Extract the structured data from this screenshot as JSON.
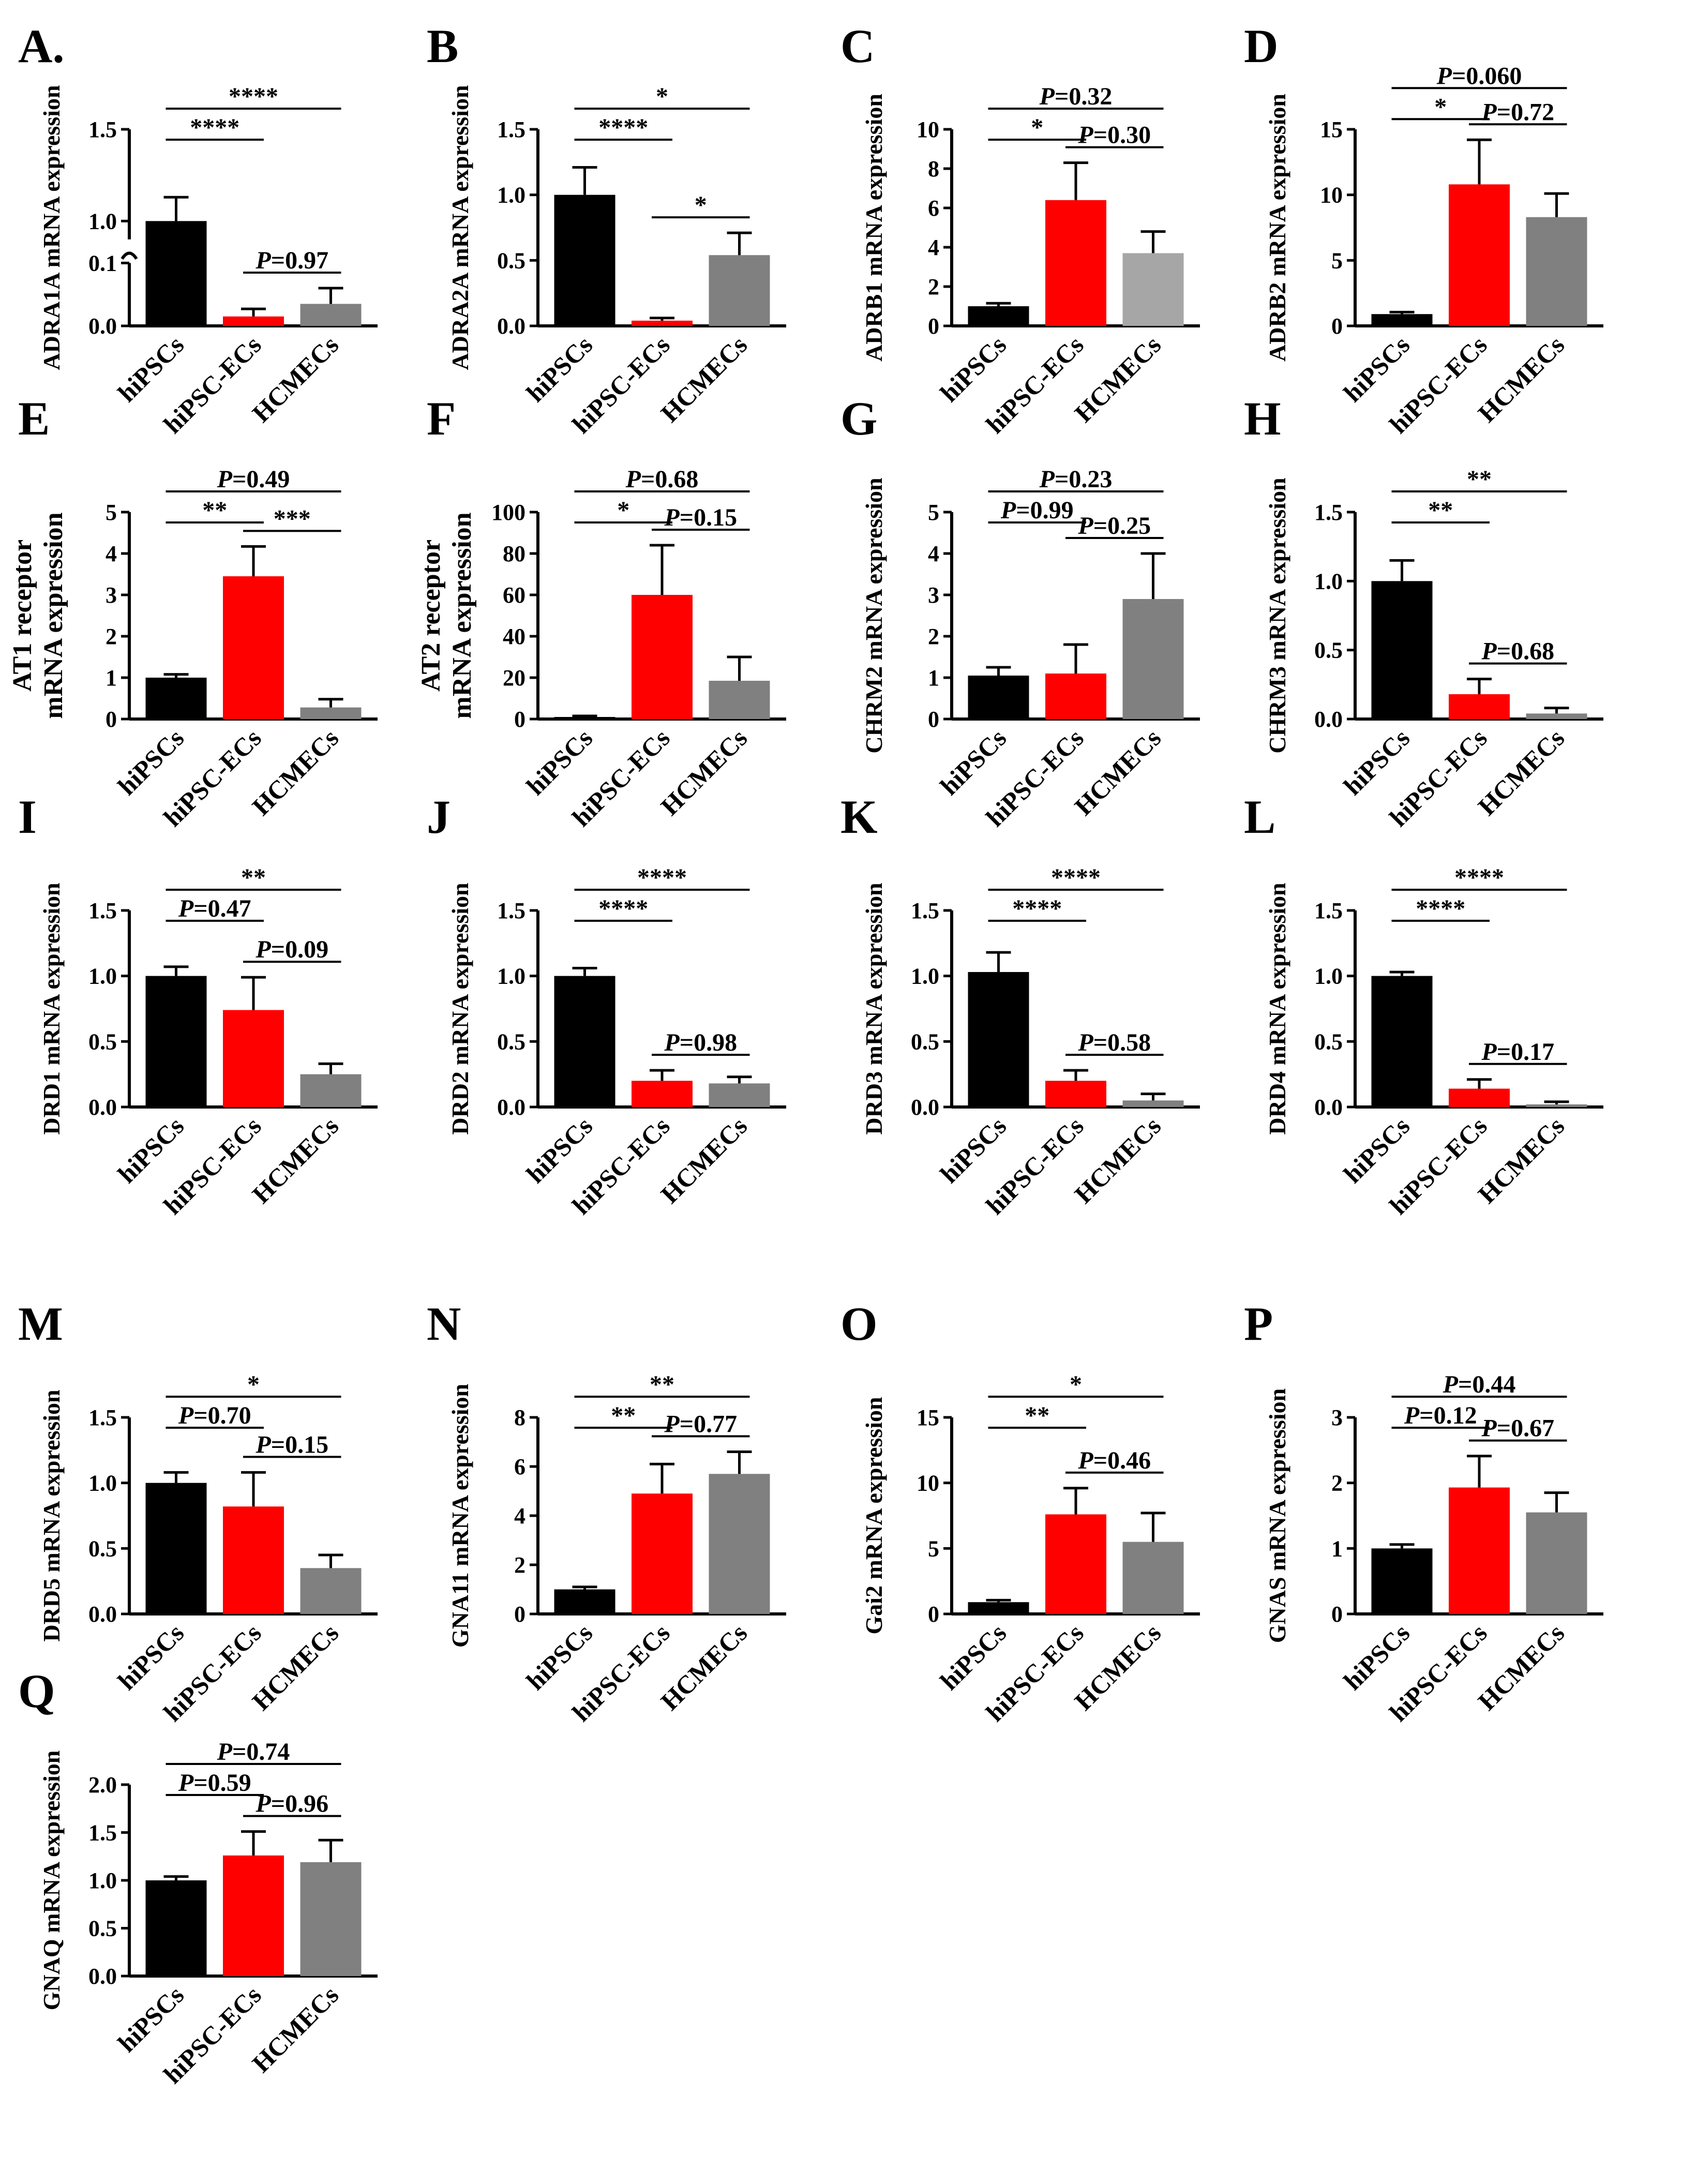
{
  "colors": {
    "hiPSCs": "#000000",
    "hiPSC-ECs": "#ff0000",
    "HCMECs": "#808080",
    "HCMECs_light": "#a6a6a6"
  },
  "chart_data": [
    {
      "id": "A",
      "type": "bar",
      "ylabel": "ADRA1A mRNA expression",
      "categories": [
        "hiPSCs",
        "hiPSC-ECs",
        "HCMECs"
      ],
      "values": [
        1.0,
        0.015,
        0.035
      ],
      "errors": [
        0.13,
        0.012,
        0.025
      ],
      "broken_axis": true,
      "ylim_low": [
        0,
        0.1
      ],
      "ylim_high": [
        0.9,
        1.5
      ],
      "ticks_low": [
        0.0,
        0.1
      ],
      "ticks_high": [
        1.0,
        1.5
      ],
      "tick_labels": {
        "0": "0.0",
        "0.1": "0.1",
        "1": "1.0",
        "1.5": "1.5"
      },
      "annotations": [
        {
          "label": "****",
          "from": 0,
          "to": 1
        },
        {
          "label": "****",
          "from": 0,
          "to": 2
        },
        {
          "label": "P=0.97",
          "from": 1,
          "to": 2
        }
      ]
    },
    {
      "id": "B",
      "type": "bar",
      "ylabel": "ADRA2A mRNA expression",
      "categories": [
        "hiPSCs",
        "hiPSC-ECs",
        "HCMECs"
      ],
      "values": [
        1.0,
        0.04,
        0.54
      ],
      "errors": [
        0.21,
        0.02,
        0.17
      ],
      "ylim": [
        0,
        1.5
      ],
      "ticks": [
        0,
        0.5,
        1.0,
        1.5
      ],
      "tick_labels": [
        "0.0",
        "0.5",
        "1.0",
        "1.5"
      ],
      "annotations": [
        {
          "label": "****",
          "from": 0,
          "to": 1
        },
        {
          "label": "*",
          "from": 0,
          "to": 2
        },
        {
          "label": "*",
          "from": 1,
          "to": 2
        }
      ]
    },
    {
      "id": "C",
      "type": "bar",
      "ylabel": "ADRB1 mRNA expression",
      "categories": [
        "hiPSCs",
        "hiPSC-ECs",
        "HCMECs"
      ],
      "values": [
        1.0,
        6.4,
        3.7
      ],
      "errors": [
        0.15,
        1.9,
        1.1
      ],
      "ylim": [
        0,
        10
      ],
      "ticks": [
        0,
        2,
        4,
        6,
        8,
        10
      ],
      "tick_labels": [
        "0",
        "2",
        "4",
        "6",
        "8",
        "10"
      ],
      "annotations": [
        {
          "label": "*",
          "from": 0,
          "to": 1
        },
        {
          "label": "P=0.32",
          "from": 0,
          "to": 2
        },
        {
          "label": "P=0.30",
          "from": 1,
          "to": 2
        }
      ]
    },
    {
      "id": "D",
      "type": "bar",
      "ylabel": "ADRB2 mRNA expression",
      "categories": [
        "hiPSCs",
        "hiPSC-ECs",
        "HCMECs"
      ],
      "values": [
        0.9,
        10.8,
        8.3
      ],
      "errors": [
        0.15,
        3.4,
        1.8
      ],
      "ylim": [
        0,
        15
      ],
      "ticks": [
        0,
        5,
        10,
        15
      ],
      "tick_labels": [
        "0",
        "5",
        "10",
        "15"
      ],
      "annotations": [
        {
          "label": "*",
          "from": 0,
          "to": 1
        },
        {
          "label": "P=0.060",
          "from": 0,
          "to": 2
        },
        {
          "label": "P=0.72",
          "from": 1,
          "to": 2
        }
      ]
    },
    {
      "id": "E",
      "type": "bar",
      "ylabel": [
        "AT1 receptor",
        "mRNA expression"
      ],
      "categories": [
        "hiPSCs",
        "hiPSC-ECs",
        "HCMECs"
      ],
      "values": [
        1.0,
        3.45,
        0.28
      ],
      "errors": [
        0.08,
        0.72,
        0.2
      ],
      "ylim": [
        0,
        5
      ],
      "ticks": [
        0,
        1,
        2,
        3,
        4,
        5
      ],
      "tick_labels": [
        "0",
        "1",
        "2",
        "3",
        "4",
        "5"
      ],
      "annotations": [
        {
          "label": "**",
          "from": 0,
          "to": 1
        },
        {
          "label": "P=0.49",
          "from": 0,
          "to": 2
        },
        {
          "label": "***",
          "from": 1,
          "to": 2
        }
      ]
    },
    {
      "id": "F",
      "type": "bar",
      "ylabel": [
        "AT2 receptor",
        "mRNA expression"
      ],
      "categories": [
        "hiPSCs",
        "hiPSC-ECs",
        "HCMECs"
      ],
      "values": [
        1.0,
        60,
        18.5
      ],
      "errors": [
        0.5,
        24,
        11.5
      ],
      "ylim": [
        0,
        100
      ],
      "ticks": [
        0,
        20,
        40,
        60,
        80,
        100
      ],
      "tick_labels": [
        "0",
        "20",
        "40",
        "60",
        "80",
        "100"
      ],
      "annotations": [
        {
          "label": "*",
          "from": 0,
          "to": 1
        },
        {
          "label": "P=0.68",
          "from": 0,
          "to": 2
        },
        {
          "label": "P=0.15",
          "from": 1,
          "to": 2
        }
      ]
    },
    {
      "id": "G",
      "type": "bar",
      "ylabel": "CHRM2 mRNA expression",
      "categories": [
        "hiPSCs",
        "hiPSC-ECs",
        "HCMECs"
      ],
      "values": [
        1.05,
        1.1,
        2.9
      ],
      "errors": [
        0.2,
        0.7,
        1.1
      ],
      "ylim": [
        0,
        5
      ],
      "ticks": [
        0,
        1,
        2,
        3,
        4,
        5
      ],
      "tick_labels": [
        "0",
        "1",
        "2",
        "3",
        "4",
        "5"
      ],
      "annotations": [
        {
          "label": "P=0.99",
          "from": 0,
          "to": 1
        },
        {
          "label": "P=0.23",
          "from": 0,
          "to": 2
        },
        {
          "label": "P=0.25",
          "from": 1,
          "to": 2
        }
      ]
    },
    {
      "id": "H",
      "type": "bar",
      "ylabel": "CHRM3 mRNA expression",
      "categories": [
        "hiPSCs",
        "hiPSC-ECs",
        "HCMECs"
      ],
      "values": [
        1.0,
        0.18,
        0.04
      ],
      "errors": [
        0.15,
        0.11,
        0.04
      ],
      "ylim": [
        0,
        1.5
      ],
      "ticks": [
        0,
        0.5,
        1.0,
        1.5
      ],
      "tick_labels": [
        "0.0",
        "0.5",
        "1.0",
        "1.5"
      ],
      "annotations": [
        {
          "label": "**",
          "from": 0,
          "to": 1
        },
        {
          "label": "**",
          "from": 0,
          "to": 2
        },
        {
          "label": "P=0.68",
          "from": 1,
          "to": 2
        }
      ]
    },
    {
      "id": "I",
      "type": "bar",
      "ylabel": "DRD1 mRNA expression",
      "categories": [
        "hiPSCs",
        "hiPSC-ECs",
        "HCMECs"
      ],
      "values": [
        1.0,
        0.74,
        0.25
      ],
      "errors": [
        0.07,
        0.25,
        0.08
      ],
      "ylim": [
        0,
        1.5
      ],
      "ticks": [
        0,
        0.5,
        1.0,
        1.5
      ],
      "tick_labels": [
        "0.0",
        "0.5",
        "1.0",
        "1.5"
      ],
      "annotations": [
        {
          "label": "P=0.47",
          "from": 0,
          "to": 1
        },
        {
          "label": "**",
          "from": 0,
          "to": 2
        },
        {
          "label": "P=0.09",
          "from": 1,
          "to": 2
        }
      ]
    },
    {
      "id": "J",
      "type": "bar",
      "ylabel": "DRD2 mRNA expression",
      "categories": [
        "hiPSCs",
        "hiPSC-ECs",
        "HCMECs"
      ],
      "values": [
        1.0,
        0.2,
        0.18
      ],
      "errors": [
        0.06,
        0.08,
        0.05
      ],
      "ylim": [
        0,
        1.5
      ],
      "ticks": [
        0,
        0.5,
        1.0,
        1.5
      ],
      "tick_labels": [
        "0.0",
        "0.5",
        "1.0",
        "1.5"
      ],
      "annotations": [
        {
          "label": "****",
          "from": 0,
          "to": 1
        },
        {
          "label": "****",
          "from": 0,
          "to": 2
        },
        {
          "label": "P=0.98",
          "from": 1,
          "to": 2
        }
      ]
    },
    {
      "id": "K",
      "type": "bar",
      "ylabel": "DRD3 mRNA expression",
      "categories": [
        "hiPSCs",
        "hiPSC-ECs",
        "HCMECs"
      ],
      "values": [
        1.03,
        0.2,
        0.05
      ],
      "errors": [
        0.15,
        0.08,
        0.05
      ],
      "ylim": [
        0,
        1.5
      ],
      "ticks": [
        0,
        0.5,
        1.0,
        1.5
      ],
      "tick_labels": [
        "0.0",
        "0.5",
        "1.0",
        "1.5"
      ],
      "annotations": [
        {
          "label": "****",
          "from": 0,
          "to": 1
        },
        {
          "label": "****",
          "from": 0,
          "to": 2
        },
        {
          "label": "P=0.58",
          "from": 1,
          "to": 2
        }
      ]
    },
    {
      "id": "L",
      "type": "bar",
      "ylabel": "DRD4 mRNA expression",
      "categories": [
        "hiPSCs",
        "hiPSC-ECs",
        "HCMECs"
      ],
      "values": [
        1.0,
        0.14,
        0.02
      ],
      "errors": [
        0.03,
        0.07,
        0.02
      ],
      "ylim": [
        0,
        1.5
      ],
      "ticks": [
        0,
        0.5,
        1.0,
        1.5
      ],
      "tick_labels": [
        "0.0",
        "0.5",
        "1.0",
        "1.5"
      ],
      "annotations": [
        {
          "label": "****",
          "from": 0,
          "to": 1
        },
        {
          "label": "****",
          "from": 0,
          "to": 2
        },
        {
          "label": "P=0.17",
          "from": 1,
          "to": 2
        }
      ]
    },
    {
      "id": "M",
      "type": "bar",
      "ylabel": "DRD5 mRNA expression",
      "categories": [
        "hiPSCs",
        "hiPSC-ECs",
        "HCMECs"
      ],
      "values": [
        1.0,
        0.82,
        0.35
      ],
      "errors": [
        0.08,
        0.26,
        0.1
      ],
      "ylim": [
        0,
        1.5
      ],
      "ticks": [
        0,
        0.5,
        1.0,
        1.5
      ],
      "tick_labels": [
        "0.0",
        "0.5",
        "1.0",
        "1.5"
      ],
      "annotations": [
        {
          "label": "P=0.70",
          "from": 0,
          "to": 1
        },
        {
          "label": "*",
          "from": 0,
          "to": 2
        },
        {
          "label": "P=0.15",
          "from": 1,
          "to": 2
        }
      ]
    },
    {
      "id": "N",
      "type": "bar",
      "ylabel": "GNA11 mRNA expression",
      "categories": [
        "hiPSCs",
        "hiPSC-ECs",
        "HCMECs"
      ],
      "values": [
        1.0,
        4.9,
        5.7
      ],
      "errors": [
        0.1,
        1.2,
        0.9
      ],
      "ylim": [
        0,
        8
      ],
      "ticks": [
        0,
        2,
        4,
        6,
        8
      ],
      "tick_labels": [
        "0",
        "2",
        "4",
        "6",
        "8"
      ],
      "annotations": [
        {
          "label": "**",
          "from": 0,
          "to": 1
        },
        {
          "label": "**",
          "from": 0,
          "to": 2
        },
        {
          "label": "P=0.77",
          "from": 1,
          "to": 2
        }
      ]
    },
    {
      "id": "O",
      "type": "bar",
      "ylabel": "Gai2 mRNA expression",
      "categories": [
        "hiPSCs",
        "hiPSC-ECs",
        "HCMECs"
      ],
      "values": [
        0.9,
        7.6,
        5.5
      ],
      "errors": [
        0.15,
        2.0,
        2.2
      ],
      "ylim": [
        0,
        15
      ],
      "ticks": [
        0,
        5,
        10,
        15
      ],
      "tick_labels": [
        "0",
        "5",
        "10",
        "15"
      ],
      "annotations": [
        {
          "label": "**",
          "from": 0,
          "to": 1
        },
        {
          "label": "*",
          "from": 0,
          "to": 2
        },
        {
          "label": "P=0.46",
          "from": 1,
          "to": 2
        }
      ]
    },
    {
      "id": "P",
      "type": "bar",
      "ylabel": "GNAS mRNA expression",
      "categories": [
        "hiPSCs",
        "hiPSC-ECs",
        "HCMECs"
      ],
      "values": [
        1.0,
        1.93,
        1.55
      ],
      "errors": [
        0.06,
        0.48,
        0.3
      ],
      "ylim": [
        0,
        3
      ],
      "ticks": [
        0,
        1,
        2,
        3
      ],
      "tick_labels": [
        "0",
        "1",
        "2",
        "3"
      ],
      "annotations": [
        {
          "label": "P=0.12",
          "from": 0,
          "to": 1
        },
        {
          "label": "P=0.44",
          "from": 0,
          "to": 2
        },
        {
          "label": "P=0.67",
          "from": 1,
          "to": 2
        }
      ]
    },
    {
      "id": "Q",
      "type": "bar",
      "ylabel": "GNAQ mRNA expression",
      "categories": [
        "hiPSCs",
        "hiPSC-ECs",
        "HCMECs"
      ],
      "values": [
        1.0,
        1.26,
        1.19
      ],
      "errors": [
        0.04,
        0.25,
        0.23
      ],
      "ylim": [
        0,
        2.0
      ],
      "ticks": [
        0,
        0.5,
        1.0,
        1.5,
        2.0
      ],
      "tick_labels": [
        "0.0",
        "0.5",
        "1.0",
        "1.5",
        "2.0"
      ],
      "annotations": [
        {
          "label": "P=0.59",
          "from": 0,
          "to": 1
        },
        {
          "label": "P=0.74",
          "from": 0,
          "to": 2
        },
        {
          "label": "P=0.96",
          "from": 1,
          "to": 2
        }
      ]
    }
  ]
}
